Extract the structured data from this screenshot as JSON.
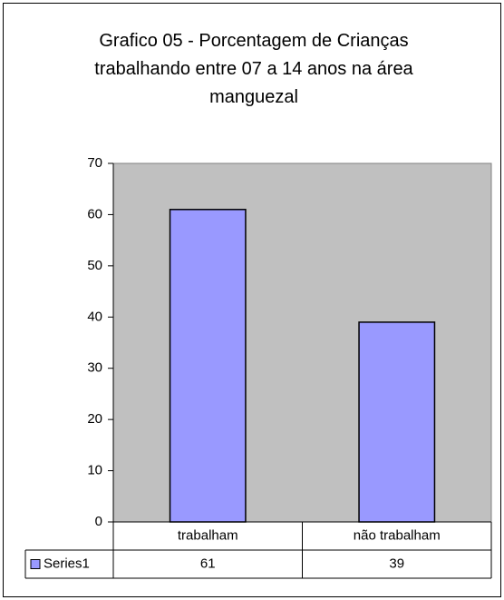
{
  "chart_data": {
    "type": "bar",
    "title": "Grafico 05 - Porcentagem de Crianças trabalhando entre 07 a 14 anos na área manguezal",
    "categories": [
      "trabalham",
      "não trabalham"
    ],
    "series": [
      {
        "name": "Series1",
        "color": "#9999ff",
        "values": [
          61,
          39
        ]
      }
    ],
    "ylim": [
      0,
      70
    ],
    "yticks": [
      0,
      10,
      20,
      30,
      40,
      50,
      60,
      70
    ],
    "plot_background": "#c0c0c0",
    "data_table": true
  }
}
